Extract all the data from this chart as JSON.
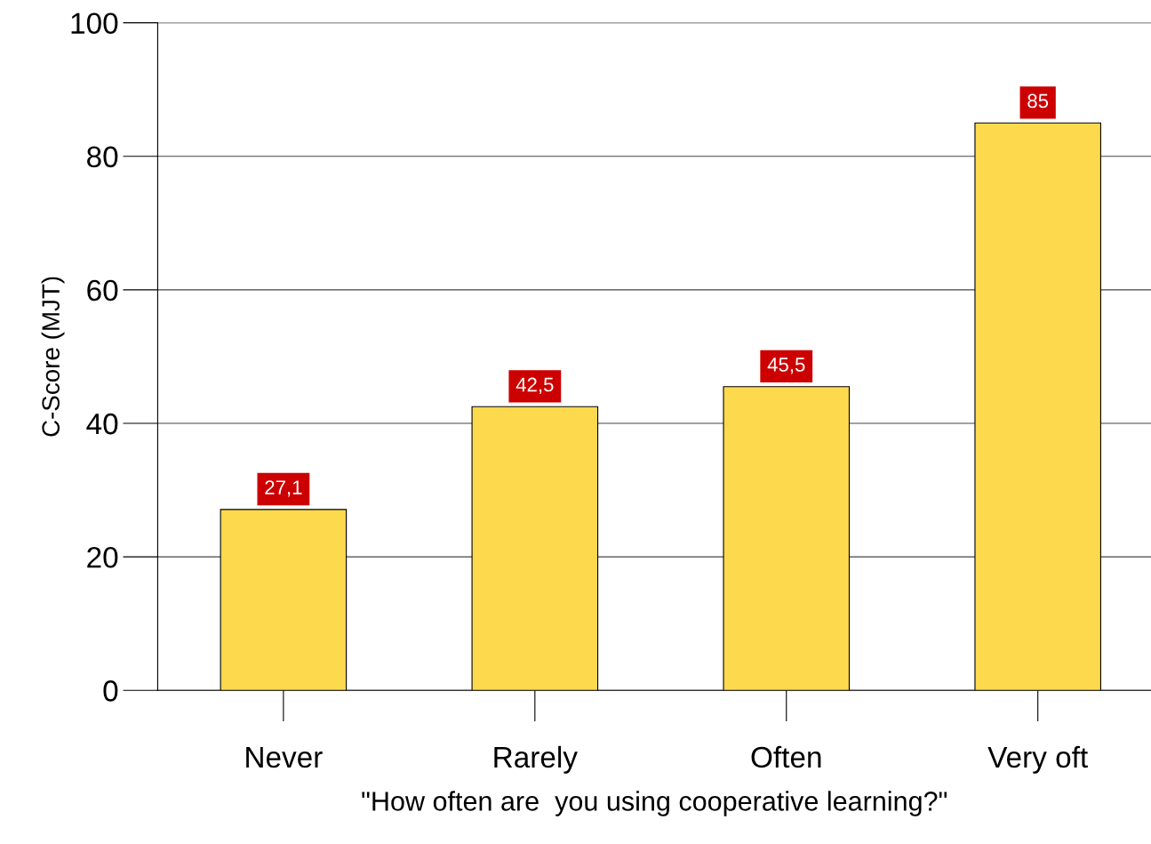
{
  "chart_data": {
    "type": "bar",
    "ylabel": "C-Score (MJT)",
    "xlabel": "\"How often are  you using cooperative learning?\"",
    "categories": [
      "Never",
      "Rarely",
      "Often",
      "Very oft"
    ],
    "values": [
      27.1,
      42.5,
      45.5,
      85
    ],
    "value_labels": [
      "27,1",
      "42,5",
      "45,5",
      "85"
    ],
    "color": "#fdd94e",
    "ylim": [
      0,
      100
    ],
    "yticks": [
      0,
      20,
      40,
      60,
      80,
      100
    ],
    "grid": "y"
  }
}
